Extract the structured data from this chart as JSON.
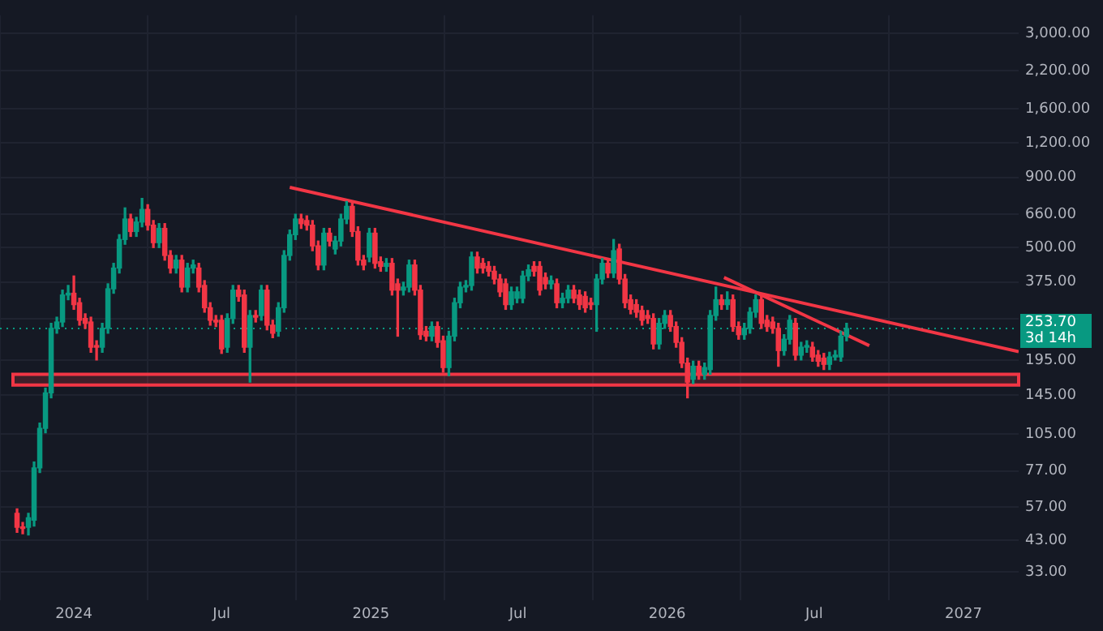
{
  "chart_data": {
    "type": "candlestick",
    "x": [
      "2023-10-23",
      "2023-10-30",
      "2023-11-06",
      "2023-11-13",
      "2023-11-20",
      "2023-11-27",
      "2023-12-04",
      "2023-12-11",
      "2023-12-18",
      "2023-12-25",
      "2024-01-01",
      "2024-01-08",
      "2024-01-15",
      "2024-01-22",
      "2024-01-29",
      "2024-02-05",
      "2024-02-12",
      "2024-02-19",
      "2024-02-26",
      "2024-03-04",
      "2024-03-11",
      "2024-03-18",
      "2024-03-25",
      "2024-04-01",
      "2024-04-08",
      "2024-04-15",
      "2024-04-22",
      "2024-04-29",
      "2024-05-06",
      "2024-05-13",
      "2024-05-20",
      "2024-05-27",
      "2024-06-03",
      "2024-06-10",
      "2024-06-17",
      "2024-06-24",
      "2024-07-01",
      "2024-07-08",
      "2024-07-15",
      "2024-07-22",
      "2024-07-29",
      "2024-08-05",
      "2024-08-12",
      "2024-08-19",
      "2024-08-26",
      "2024-09-02",
      "2024-09-09",
      "2024-09-16",
      "2024-09-23",
      "2024-09-30",
      "2024-10-07",
      "2024-10-14",
      "2024-10-21",
      "2024-10-28",
      "2024-11-04",
      "2024-11-11",
      "2024-11-18",
      "2024-11-25",
      "2024-12-02",
      "2024-12-09",
      "2024-12-16",
      "2024-12-23",
      "2024-12-30",
      "2025-01-06",
      "2025-01-13",
      "2025-01-20",
      "2025-01-27",
      "2025-02-03",
      "2025-02-10",
      "2025-02-17",
      "2025-02-24",
      "2025-03-03",
      "2025-03-10",
      "2025-03-17",
      "2025-03-24",
      "2025-03-31",
      "2025-04-07",
      "2025-04-14",
      "2025-04-21",
      "2025-04-28",
      "2025-05-05",
      "2025-05-12",
      "2025-05-19",
      "2025-05-26",
      "2025-06-02",
      "2025-06-09",
      "2025-06-16",
      "2025-06-23",
      "2025-06-30",
      "2025-07-07",
      "2025-07-14",
      "2025-07-21",
      "2025-07-28",
      "2025-08-04",
      "2025-08-11",
      "2025-08-18",
      "2025-08-25",
      "2025-09-01",
      "2025-09-08",
      "2025-09-15",
      "2025-09-22",
      "2025-09-29",
      "2025-10-06",
      "2025-10-13",
      "2025-10-20",
      "2025-10-27",
      "2025-11-03",
      "2025-11-10",
      "2025-11-17",
      "2025-11-24",
      "2025-12-01",
      "2025-12-08",
      "2025-12-15",
      "2025-12-22",
      "2025-12-29",
      "2026-01-05",
      "2026-01-12",
      "2026-01-19",
      "2026-01-26",
      "2026-02-02",
      "2026-02-09",
      "2026-02-16",
      "2026-02-23",
      "2026-03-02",
      "2026-03-09",
      "2026-03-16",
      "2026-03-23",
      "2026-03-30",
      "2026-04-06",
      "2026-04-13",
      "2026-04-20",
      "2026-04-27",
      "2026-05-04",
      "2026-05-11",
      "2026-05-18",
      "2026-05-25",
      "2026-06-01",
      "2026-06-08",
      "2026-06-15",
      "2026-06-22",
      "2026-06-29",
      "2026-07-06",
      "2026-07-13",
      "2026-07-20",
      "2026-07-27",
      "2026-08-03",
      "2026-08-10"
    ],
    "ohlc": [
      [
        54,
        56,
        46,
        48
      ],
      [
        48,
        50,
        45.5,
        47.5
      ],
      [
        48,
        54,
        45,
        52
      ],
      [
        51,
        83,
        48.5,
        79
      ],
      [
        79,
        115,
        76,
        110
      ],
      [
        110,
        154,
        106,
        148
      ],
      [
        148,
        265,
        142,
        254
      ],
      [
        254,
        279,
        244,
        268
      ],
      [
        268,
        350,
        258,
        336
      ],
      [
        336,
        364,
        323,
        341
      ],
      [
        341,
        394,
        298,
        310
      ],
      [
        315,
        327,
        261,
        272
      ],
      [
        276,
        287,
        254,
        265
      ],
      [
        268,
        279,
        208,
        217
      ],
      [
        220,
        229,
        195,
        217
      ],
      [
        217,
        265,
        208,
        254
      ],
      [
        254,
        369,
        244,
        354
      ],
      [
        354,
        438,
        341,
        421
      ],
      [
        421,
        557,
        404,
        535
      ],
      [
        535,
        697,
        514,
        635
      ],
      [
        635,
        661,
        549,
        572
      ],
      [
        572,
        644,
        549,
        619
      ],
      [
        619,
        755,
        595,
        688
      ],
      [
        688,
        716,
        579,
        603
      ],
      [
        603,
        627,
        500,
        521
      ],
      [
        521,
        611,
        500,
        587
      ],
      [
        587,
        611,
        450,
        468
      ],
      [
        468,
        487,
        404,
        421
      ],
      [
        421,
        468,
        404,
        450
      ],
      [
        450,
        468,
        345,
        359
      ],
      [
        359,
        438,
        345,
        421
      ],
      [
        421,
        450,
        404,
        432
      ],
      [
        421,
        438,
        345,
        359
      ],
      [
        364,
        379,
        291,
        302
      ],
      [
        302,
        315,
        261,
        272
      ],
      [
        272,
        283,
        258,
        268
      ],
      [
        272,
        283,
        206,
        214
      ],
      [
        217,
        287,
        208,
        276
      ],
      [
        276,
        364,
        265,
        350
      ],
      [
        350,
        364,
        319,
        332
      ],
      [
        336,
        350,
        208,
        217
      ],
      [
        217,
        295,
        162,
        283
      ],
      [
        283,
        295,
        268,
        279
      ],
      [
        283,
        364,
        272,
        350
      ],
      [
        350,
        364,
        251,
        261
      ],
      [
        261,
        272,
        235,
        244
      ],
      [
        248,
        315,
        238,
        302
      ],
      [
        302,
        487,
        291,
        468
      ],
      [
        468,
        579,
        450,
        557
      ],
      [
        557,
        661,
        535,
        635
      ],
      [
        635,
        661,
        587,
        611
      ],
      [
        627,
        652,
        579,
        603
      ],
      [
        603,
        627,
        487,
        507
      ],
      [
        507,
        528,
        415,
        432
      ],
      [
        432,
        587,
        415,
        564
      ],
      [
        564,
        587,
        507,
        528
      ],
      [
        494,
        549,
        474,
        528
      ],
      [
        528,
        661,
        507,
        635
      ],
      [
        635,
        735,
        611,
        706
      ],
      [
        706,
        735,
        549,
        572
      ],
      [
        572,
        595,
        432,
        450
      ],
      [
        450,
        468,
        415,
        432
      ],
      [
        462,
        587,
        444,
        564
      ],
      [
        564,
        587,
        421,
        438
      ],
      [
        444,
        462,
        410,
        427
      ],
      [
        427,
        456,
        410,
        438
      ],
      [
        438,
        456,
        336,
        350
      ],
      [
        369,
        384,
        238,
        350
      ],
      [
        350,
        374,
        336,
        359
      ],
      [
        359,
        450,
        345,
        432
      ],
      [
        432,
        450,
        336,
        350
      ],
      [
        350,
        364,
        232,
        241
      ],
      [
        248,
        258,
        229,
        238
      ],
      [
        238,
        268,
        229,
        258
      ],
      [
        258,
        268,
        217,
        226
      ],
      [
        229,
        238,
        176,
        183
      ],
      [
        183,
        248,
        171,
        238
      ],
      [
        238,
        327,
        229,
        315
      ],
      [
        315,
        374,
        302,
        359
      ],
      [
        359,
        379,
        345,
        364
      ],
      [
        364,
        481,
        350,
        462
      ],
      [
        462,
        481,
        404,
        421
      ],
      [
        438,
        456,
        404,
        421
      ],
      [
        427,
        444,
        394,
        410
      ],
      [
        410,
        427,
        369,
        384
      ],
      [
        384,
        399,
        332,
        345
      ],
      [
        369,
        384,
        298,
        310
      ],
      [
        310,
        359,
        298,
        345
      ],
      [
        327,
        359,
        315,
        345
      ],
      [
        327,
        410,
        315,
        394
      ],
      [
        394,
        432,
        379,
        415
      ],
      [
        427,
        444,
        394,
        410
      ],
      [
        427,
        444,
        336,
        350
      ],
      [
        389,
        404,
        354,
        369
      ],
      [
        369,
        394,
        354,
        379
      ],
      [
        369,
        384,
        302,
        315
      ],
      [
        315,
        341,
        302,
        327
      ],
      [
        327,
        364,
        315,
        350
      ],
      [
        350,
        364,
        315,
        327
      ],
      [
        336,
        350,
        298,
        310
      ],
      [
        332,
        345,
        291,
        302
      ],
      [
        315,
        327,
        298,
        310
      ],
      [
        310,
        399,
        248,
        384
      ],
      [
        384,
        456,
        369,
        438
      ],
      [
        438,
        456,
        389,
        404
      ],
      [
        404,
        535,
        389,
        487
      ],
      [
        494,
        514,
        369,
        384
      ],
      [
        384,
        399,
        302,
        315
      ],
      [
        323,
        336,
        287,
        298
      ],
      [
        310,
        323,
        279,
        291
      ],
      [
        295,
        306,
        261,
        272
      ],
      [
        283,
        295,
        265,
        276
      ],
      [
        276,
        287,
        214,
        223
      ],
      [
        223,
        276,
        214,
        265
      ],
      [
        265,
        295,
        254,
        283
      ],
      [
        283,
        295,
        248,
        258
      ],
      [
        258,
        268,
        217,
        226
      ],
      [
        226,
        235,
        183,
        190
      ],
      [
        190,
        198,
        142,
        162
      ],
      [
        166,
        193,
        160,
        185
      ],
      [
        185,
        193,
        166,
        173
      ],
      [
        173,
        190,
        166,
        183
      ],
      [
        180,
        295,
        173,
        283
      ],
      [
        283,
        359,
        272,
        323
      ],
      [
        323,
        336,
        298,
        310
      ],
      [
        310,
        345,
        298,
        323
      ],
      [
        323,
        336,
        248,
        258
      ],
      [
        258,
        268,
        232,
        241
      ],
      [
        241,
        265,
        232,
        254
      ],
      [
        254,
        302,
        244,
        291
      ],
      [
        291,
        336,
        279,
        323
      ],
      [
        323,
        336,
        254,
        265
      ],
      [
        272,
        283,
        248,
        258
      ],
      [
        268,
        279,
        244,
        254
      ],
      [
        254,
        265,
        185,
        211
      ],
      [
        211,
        241,
        203,
        232
      ],
      [
        232,
        283,
        223,
        272
      ],
      [
        265,
        276,
        195,
        203
      ],
      [
        203,
        226,
        195,
        217
      ],
      [
        217,
        229,
        208,
        220
      ],
      [
        217,
        226,
        193,
        200
      ],
      [
        203,
        211,
        185,
        193
      ],
      [
        198,
        206,
        180,
        188
      ],
      [
        188,
        208,
        180,
        200
      ],
      [
        200,
        211,
        195,
        203
      ],
      [
        200,
        248,
        193,
        238
      ],
      [
        238,
        265,
        229,
        253.7
      ]
    ],
    "colors": [
      "#f23645",
      "#f23645",
      "#089981",
      "#089981",
      "#089981",
      "#089981",
      "#089981",
      "#089981",
      "#089981",
      "#089981",
      "#f23645",
      "#f23645",
      "#f23645",
      "#f23645",
      "#f23645",
      "#089981",
      "#089981",
      "#089981",
      "#089981",
      "#089981",
      "#f23645",
      "#089981",
      "#089981",
      "#f23645",
      "#f23645",
      "#089981",
      "#f23645",
      "#f23645",
      "#089981",
      "#f23645",
      "#089981",
      "#089981",
      "#f23645",
      "#f23645",
      "#f23645",
      "#f23645",
      "#f23645",
      "#089981",
      "#089981",
      "#f23645",
      "#f23645",
      "#089981",
      "#f23645",
      "#089981",
      "#f23645",
      "#f23645",
      "#089981",
      "#089981",
      "#089981",
      "#089981",
      "#f23645",
      "#f23645",
      "#f23645",
      "#f23645",
      "#089981",
      "#f23645",
      "#089981",
      "#089981",
      "#089981",
      "#f23645",
      "#f23645",
      "#f23645",
      "#089981",
      "#f23645",
      "#f23645",
      "#089981",
      "#f23645",
      "#f23645",
      "#089981",
      "#089981",
      "#f23645",
      "#f23645",
      "#f23645",
      "#089981",
      "#f23645",
      "#f23645",
      "#089981",
      "#089981",
      "#089981",
      "#089981",
      "#089981",
      "#f23645",
      "#f23645",
      "#f23645",
      "#f23645",
      "#f23645",
      "#f23645",
      "#089981",
      "#089981",
      "#089981",
      "#089981",
      "#f23645",
      "#f23645",
      "#f23645",
      "#089981",
      "#f23645",
      "#089981",
      "#089981",
      "#f23645",
      "#f23645",
      "#f23645",
      "#f23645",
      "#089981",
      "#089981",
      "#f23645",
      "#089981",
      "#f23645",
      "#f23645",
      "#f23645",
      "#f23645",
      "#f23645",
      "#f23645",
      "#f23645",
      "#089981",
      "#089981",
      "#f23645",
      "#f23645",
      "#f23645",
      "#f23645",
      "#089981",
      "#f23645",
      "#089981",
      "#089981",
      "#089981",
      "#f23645",
      "#089981",
      "#f23645",
      "#f23645",
      "#089981",
      "#089981",
      "#089981",
      "#f23645",
      "#f23645",
      "#f23645",
      "#f23645",
      "#089981",
      "#089981",
      "#f23645",
      "#089981",
      "#089981",
      "#f23645",
      "#f23645",
      "#f23645",
      "#089981",
      "#089981",
      "#089981",
      "#089981"
    ],
    "series": [
      {
        "type": "line",
        "color": "#f23645",
        "x": [
          "2024-09-23",
          "2027-03-10"
        ],
        "values": [
          828,
          209
        ]
      },
      {
        "type": "line",
        "color": "#f23645",
        "x": [
          "2026-03-12",
          "2026-09-07"
        ],
        "values": [
          389,
          220
        ]
      }
    ],
    "xlim": [
      "2023-10-02",
      "2027-03-10"
    ],
    "xticks": [
      {
        "value": "2024-01-01",
        "label": "2024"
      },
      {
        "value": "2024-07-01",
        "label": "Jul"
      },
      {
        "value": "2025-01-01",
        "label": "2025"
      },
      {
        "value": "2025-07-01",
        "label": "Jul"
      },
      {
        "value": "2026-01-01",
        "label": "2026"
      },
      {
        "value": "2026-07-01",
        "label": "Jul"
      },
      {
        "value": "2027-01-01",
        "label": "2027"
      }
    ],
    "log": true,
    "ylim": [
      26,
      3500
    ],
    "yticks": [
      {
        "value": 33,
        "label": "33.00"
      },
      {
        "value": 43,
        "label": "43.00"
      },
      {
        "value": 57,
        "label": "57.00"
      },
      {
        "value": 77,
        "label": "77.00"
      },
      {
        "value": 105,
        "label": "105.00"
      },
      {
        "value": 145,
        "label": "145.00"
      },
      {
        "value": 195,
        "label": "195.00"
      },
      {
        "value": 275,
        "label": null
      },
      {
        "value": 375,
        "label": "375.00"
      },
      {
        "value": 500,
        "label": "500.00"
      },
      {
        "value": 660,
        "label": "660.00"
      },
      {
        "value": 900,
        "label": "900.00"
      },
      {
        "value": 1200,
        "label": "1,200.00"
      },
      {
        "value": 1600,
        "label": "1,600.00"
      },
      {
        "value": 2200,
        "label": "2,200.00"
      },
      {
        "value": 3000,
        "label": "3,000.00"
      }
    ],
    "grid": true,
    "bands": [
      {
        "axis": "y",
        "from": 158,
        "to": 173,
        "color": "#f23645"
      }
    ],
    "ref_lines": [
      {
        "axis": "y",
        "value": 253.7,
        "label": "253.70",
        "color": "#089981",
        "line_style": "dotted"
      }
    ],
    "annotations": [
      "3d 14h"
    ]
  }
}
